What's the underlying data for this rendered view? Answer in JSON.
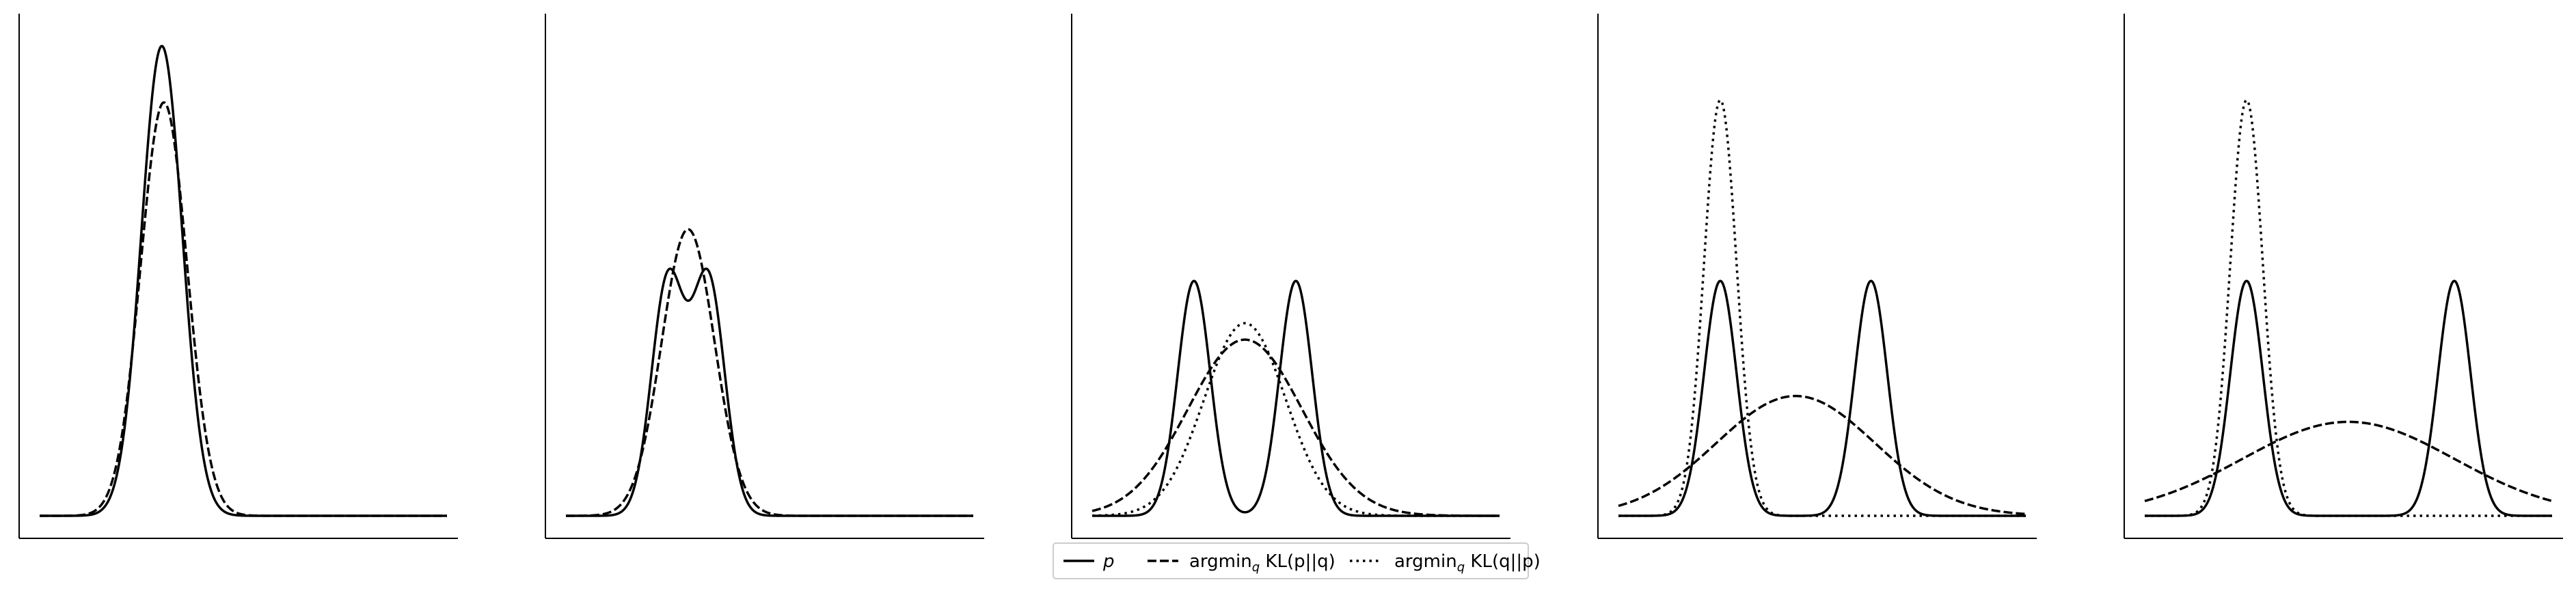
{
  "figure": {
    "background": "#ffffff",
    "line_color": "#000000"
  },
  "legend": {
    "placement": "bottom-center",
    "entries": [
      {
        "series": "p",
        "style": "solid",
        "label": "p"
      },
      {
        "series": "forward_kl",
        "style": "dashed",
        "label_prefix": "argmin",
        "label_subscript": "q",
        "label_suffix": " KL(p||q)"
      },
      {
        "series": "reverse_kl",
        "style": "dotted",
        "label_prefix": "argmin",
        "label_subscript": "q",
        "label_suffix": " KL(q||p)"
      }
    ]
  },
  "chart_data": [
    {
      "type": "line",
      "xlim": [
        0,
        10
      ],
      "ylim": [
        0,
        1.05
      ],
      "grid": false,
      "ticks": false,
      "series": [
        {
          "name": "p",
          "style": "solid",
          "components": [
            {
              "w": 1.0,
              "mu": 3.0,
              "sigma": 0.5
            }
          ]
        },
        {
          "name": "forward_kl",
          "style": "dashed",
          "components": [
            {
              "w": 0.88,
              "mu": 3.05,
              "sigma": 0.57
            }
          ]
        }
      ]
    },
    {
      "type": "line",
      "xlim": [
        0,
        10
      ],
      "ylim": [
        0,
        1.05
      ],
      "grid": false,
      "ticks": false,
      "series": [
        {
          "name": "p",
          "style": "solid",
          "components": [
            {
              "w": 0.5,
              "mu": 2.5,
              "sigma": 0.4
            },
            {
              "w": 0.5,
              "mu": 3.5,
              "sigma": 0.4
            }
          ]
        },
        {
          "name": "forward_kl",
          "style": "dashed",
          "components": [
            {
              "w": 0.61,
              "mu": 3.0,
              "sigma": 0.65
            }
          ]
        }
      ]
    },
    {
      "type": "line",
      "xlim": [
        0,
        10
      ],
      "ylim": [
        0,
        1.05
      ],
      "grid": false,
      "ticks": false,
      "series": [
        {
          "name": "p",
          "style": "solid",
          "components": [
            {
              "w": 0.5,
              "mu": 2.5,
              "sigma": 0.4
            },
            {
              "w": 0.5,
              "mu": 5.0,
              "sigma": 0.4
            }
          ]
        },
        {
          "name": "forward_kl",
          "style": "dashed",
          "components": [
            {
              "w": 0.375,
              "mu": 3.75,
              "sigma": 1.4
            }
          ]
        },
        {
          "name": "reverse_kl",
          "style": "dotted",
          "components": [
            {
              "w": 0.41,
              "mu": 3.75,
              "sigma": 1.0
            }
          ]
        }
      ]
    },
    {
      "type": "line",
      "xlim": [
        0,
        10
      ],
      "ylim": [
        0,
        1.05
      ],
      "grid": false,
      "ticks": false,
      "series": [
        {
          "name": "p",
          "style": "solid",
          "components": [
            {
              "w": 0.5,
              "mu": 2.5,
              "sigma": 0.4
            },
            {
              "w": 0.5,
              "mu": 6.2,
              "sigma": 0.4
            }
          ]
        },
        {
          "name": "forward_kl",
          "style": "dashed",
          "components": [
            {
              "w": 0.255,
              "mu": 4.35,
              "sigma": 1.95
            }
          ]
        },
        {
          "name": "reverse_kl",
          "style": "dotted",
          "components": [
            {
              "w": 0.885,
              "mu": 2.5,
              "sigma": 0.4
            }
          ]
        }
      ]
    },
    {
      "type": "line",
      "xlim": [
        0,
        10
      ],
      "ylim": [
        0,
        1.05
      ],
      "grid": false,
      "ticks": false,
      "series": [
        {
          "name": "p",
          "style": "solid",
          "components": [
            {
              "w": 0.5,
              "mu": 2.5,
              "sigma": 0.4
            },
            {
              "w": 0.5,
              "mu": 7.6,
              "sigma": 0.4
            }
          ]
        },
        {
          "name": "forward_kl",
          "style": "dashed",
          "components": [
            {
              "w": 0.2,
              "mu": 5.0,
              "sigma": 2.6
            }
          ]
        },
        {
          "name": "reverse_kl",
          "style": "dotted",
          "components": [
            {
              "w": 0.885,
              "mu": 2.5,
              "sigma": 0.4
            }
          ]
        }
      ]
    }
  ]
}
